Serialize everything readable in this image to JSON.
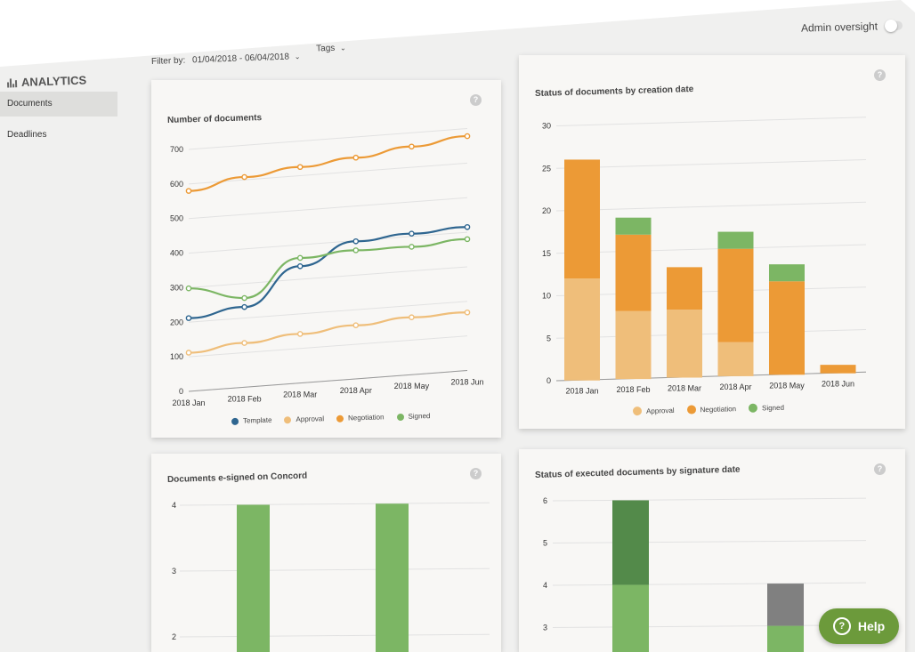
{
  "header": {
    "admin_oversight_label": "Admin oversight"
  },
  "sidebar": {
    "title": "ANALYTICS",
    "items": [
      {
        "label": "Documents",
        "active": true
      },
      {
        "label": "Deadlines",
        "active": false
      }
    ]
  },
  "filters": {
    "filter_label": "Filter by:",
    "date_range": "01/04/2018 - 06/04/2018",
    "tags_label": "Tags"
  },
  "colors": {
    "template": "#2f6690",
    "approval": "#efbe7a",
    "negotiation": "#ec9a36",
    "signed": "#7cb664",
    "signed_dark": "#538a4a",
    "gray": "#808080",
    "help_green": "#6c9a3b"
  },
  "help_button": {
    "label": "Help"
  },
  "chart_data": [
    {
      "type": "line",
      "title": "Number of documents",
      "x": [
        "2018 Jan",
        "2018 Feb",
        "2018 Mar",
        "2018 Apr",
        "2018 May",
        "2018 Jun"
      ],
      "ylim": [
        0,
        700
      ],
      "yticks": [
        0,
        100,
        200,
        300,
        400,
        500,
        600,
        700
      ],
      "series": [
        {
          "name": "Template",
          "values": [
            212,
            232,
            338,
            398,
            408,
            415
          ]
        },
        {
          "name": "Approval",
          "values": [
            112,
            128,
            142,
            155,
            166,
            168
          ]
        },
        {
          "name": "Negotiation",
          "values": [
            580,
            608,
            625,
            640,
            660,
            678
          ]
        },
        {
          "name": "Signed",
          "values": [
            298,
            258,
            362,
            372,
            370,
            380
          ]
        }
      ],
      "legend": "bottom"
    },
    {
      "type": "bar",
      "stacked": true,
      "title": "Status of documents by creation date",
      "categories": [
        "2018 Jan",
        "2018 Feb",
        "2018 Mar",
        "2018 Apr",
        "2018 May",
        "2018 Jun"
      ],
      "ylim": [
        0,
        30
      ],
      "yticks": [
        0,
        5,
        10,
        15,
        20,
        25,
        30
      ],
      "series": [
        {
          "name": "Approval",
          "values": [
            12,
            8,
            8,
            4,
            0,
            0
          ]
        },
        {
          "name": "Negotiation",
          "values": [
            14,
            9,
            5,
            11,
            11,
            1
          ]
        },
        {
          "name": "Signed",
          "values": [
            0,
            2,
            0,
            2,
            2,
            0
          ]
        }
      ],
      "legend": "bottom"
    },
    {
      "type": "bar",
      "title": "Documents e-signed on Concord",
      "yticks": [
        2,
        3,
        4
      ],
      "values": [
        4,
        4
      ]
    },
    {
      "type": "bar",
      "stacked": true,
      "title": "Status of executed documents by signature date",
      "yticks": [
        3,
        4,
        5,
        6
      ],
      "values_bar1": [
        4,
        2
      ],
      "values_bar2": [
        3,
        1
      ]
    }
  ]
}
